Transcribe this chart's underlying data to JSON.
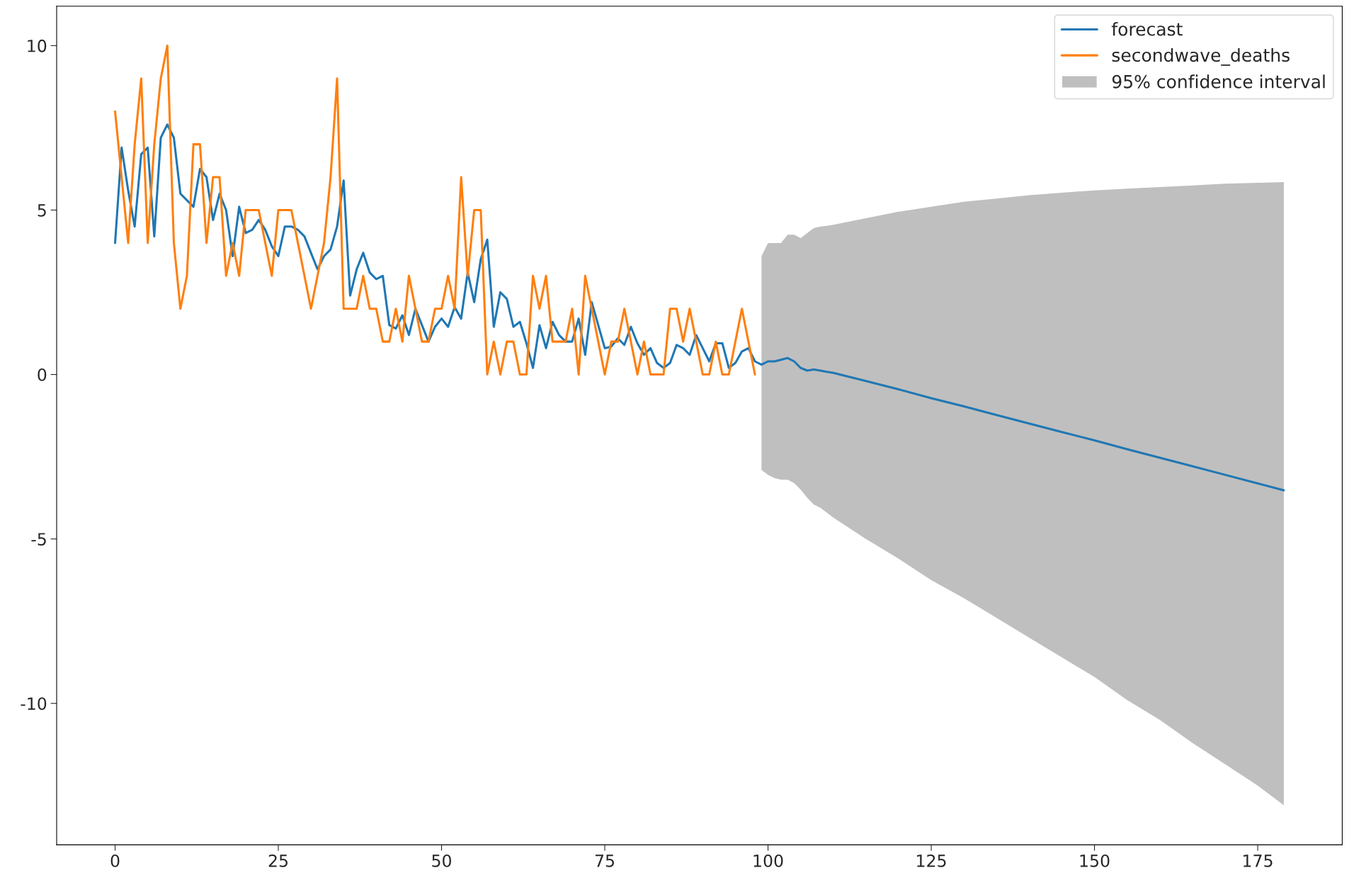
{
  "chart_data": {
    "type": "line",
    "series": [
      {
        "name": "forecast",
        "color": "#1f77b4",
        "x": [
          0,
          1,
          2,
          3,
          4,
          5,
          6,
          7,
          8,
          9,
          10,
          11,
          12,
          13,
          14,
          15,
          16,
          17,
          18,
          19,
          20,
          21,
          22,
          23,
          24,
          25,
          26,
          27,
          28,
          29,
          30,
          31,
          32,
          33,
          34,
          35,
          36,
          37,
          38,
          39,
          40,
          41,
          42,
          43,
          44,
          45,
          46,
          47,
          48,
          49,
          50,
          51,
          52,
          53,
          54,
          55,
          56,
          57,
          58,
          59,
          60,
          61,
          62,
          63,
          64,
          65,
          66,
          67,
          68,
          69,
          70,
          71,
          72,
          73,
          74,
          75,
          76,
          77,
          78,
          79,
          80,
          81,
          82,
          83,
          84,
          85,
          86,
          87,
          88,
          89,
          90,
          91,
          92,
          93,
          94,
          95,
          96,
          97,
          98,
          99,
          100,
          101,
          102,
          103,
          104,
          105,
          106,
          107,
          108,
          109,
          110,
          115,
          120,
          125,
          130,
          135,
          140,
          145,
          150,
          155,
          160,
          165,
          170,
          175,
          179
        ],
        "values": [
          4.0,
          6.9,
          5.6,
          4.5,
          6.7,
          6.9,
          4.2,
          7.2,
          7.6,
          7.2,
          5.5,
          5.3,
          5.1,
          6.25,
          6.0,
          4.7,
          5.5,
          5.0,
          3.6,
          5.1,
          4.3,
          4.4,
          4.7,
          4.4,
          3.9,
          3.6,
          4.5,
          4.5,
          4.4,
          4.2,
          3.7,
          3.2,
          3.6,
          3.8,
          4.5,
          5.9,
          2.4,
          3.2,
          3.7,
          3.1,
          2.9,
          3.0,
          1.5,
          1.4,
          1.8,
          1.2,
          2.0,
          1.5,
          1.0,
          1.45,
          1.7,
          1.45,
          2.05,
          1.7,
          3.1,
          2.2,
          3.5,
          4.1,
          1.45,
          2.5,
          2.3,
          1.45,
          1.6,
          0.95,
          0.2,
          1.5,
          0.8,
          1.6,
          1.2,
          1.0,
          1.0,
          1.7,
          0.6,
          2.2,
          1.5,
          0.8,
          0.85,
          1.1,
          0.9,
          1.45,
          0.95,
          0.6,
          0.8,
          0.35,
          0.2,
          0.35,
          0.9,
          0.8,
          0.6,
          1.2,
          0.8,
          0.4,
          0.95,
          0.95,
          0.2,
          0.35,
          0.7,
          0.8,
          0.4,
          0.3,
          0.4,
          0.4,
          0.45,
          0.5,
          0.4,
          0.2,
          0.12,
          0.15,
          0.12,
          0.08,
          0.05,
          -0.2,
          -0.45,
          -0.72,
          -0.97,
          -1.23,
          -1.49,
          -1.75,
          -2.0,
          -2.27,
          -2.53,
          -2.79,
          -3.05,
          -3.31,
          -3.52
        ],
        "upper": [
          null,
          null,
          null,
          null,
          null,
          null,
          null,
          null,
          null,
          null,
          null,
          null,
          null,
          null,
          null,
          null,
          null,
          null,
          null,
          null,
          null,
          null,
          null,
          null,
          null,
          null,
          null,
          null,
          null,
          null,
          null,
          null,
          null,
          null,
          null,
          null,
          null,
          null,
          null,
          null,
          null,
          null,
          null,
          null,
          null,
          null,
          null,
          null,
          null,
          null,
          null,
          null,
          null,
          null,
          null,
          null,
          null,
          null,
          null,
          null,
          null,
          null,
          null,
          null,
          null,
          null,
          null,
          null,
          null,
          null,
          null,
          null,
          null,
          null,
          null,
          null,
          null,
          null,
          null,
          null,
          null,
          null,
          null,
          null,
          null,
          null,
          null,
          null,
          null,
          null,
          null,
          null,
          null,
          null,
          null,
          null,
          null,
          null,
          null,
          3.6,
          4.0,
          4.0,
          4.0,
          4.25,
          4.25,
          4.15,
          4.3,
          4.45,
          4.5,
          4.52,
          4.55,
          4.75,
          4.95,
          5.1,
          5.25,
          5.35,
          5.45,
          5.53,
          5.6,
          5.65,
          5.7,
          5.75,
          5.8,
          5.83,
          5.85
        ],
        "lower": [
          null,
          null,
          null,
          null,
          null,
          null,
          null,
          null,
          null,
          null,
          null,
          null,
          null,
          null,
          null,
          null,
          null,
          null,
          null,
          null,
          null,
          null,
          null,
          null,
          null,
          null,
          null,
          null,
          null,
          null,
          null,
          null,
          null,
          null,
          null,
          null,
          null,
          null,
          null,
          null,
          null,
          null,
          null,
          null,
          null,
          null,
          null,
          null,
          null,
          null,
          null,
          null,
          null,
          null,
          null,
          null,
          null,
          null,
          null,
          null,
          null,
          null,
          null,
          null,
          null,
          null,
          null,
          null,
          null,
          null,
          null,
          null,
          null,
          null,
          null,
          null,
          null,
          null,
          null,
          null,
          null,
          null,
          null,
          null,
          null,
          null,
          null,
          null,
          null,
          null,
          null,
          null,
          null,
          null,
          null,
          null,
          null,
          null,
          null,
          -2.9,
          -3.05,
          -3.15,
          -3.2,
          -3.2,
          -3.3,
          -3.5,
          -3.75,
          -3.95,
          -4.05,
          -4.2,
          -4.35,
          -5.0,
          -5.6,
          -6.25,
          -6.8,
          -7.4,
          -8.0,
          -8.6,
          -9.2,
          -9.9,
          -10.5,
          -11.2,
          -11.85,
          -12.5,
          -13.1
        ]
      },
      {
        "name": "secondwave_deaths",
        "color": "#ff7f0e",
        "x": [
          0,
          1,
          2,
          3,
          4,
          5,
          6,
          7,
          8,
          9,
          10,
          11,
          12,
          13,
          14,
          15,
          16,
          17,
          18,
          19,
          20,
          21,
          22,
          23,
          24,
          25,
          26,
          27,
          28,
          29,
          30,
          31,
          32,
          33,
          34,
          35,
          36,
          37,
          38,
          39,
          40,
          41,
          42,
          43,
          44,
          45,
          46,
          47,
          48,
          49,
          50,
          51,
          52,
          53,
          54,
          55,
          56,
          57,
          58,
          59,
          60,
          61,
          62,
          63,
          64,
          65,
          66,
          67,
          68,
          69,
          70,
          71,
          72,
          73,
          74,
          75,
          76,
          77,
          78,
          79,
          80,
          81,
          82,
          83,
          84,
          85,
          86,
          87,
          88,
          89,
          90,
          91,
          92,
          93,
          94,
          95,
          96,
          97,
          98
        ],
        "values": [
          8,
          6,
          4,
          7,
          9,
          4,
          7,
          9,
          10,
          4,
          2,
          3,
          7,
          7,
          4,
          6,
          6,
          3,
          4,
          3,
          5,
          5,
          5,
          4,
          3,
          5,
          5,
          5,
          4,
          3,
          2,
          3,
          4,
          6,
          9,
          2,
          2,
          2,
          3,
          2,
          2,
          1,
          1,
          2,
          1,
          3,
          2,
          1,
          1,
          2,
          2,
          3,
          2,
          6,
          3,
          5,
          5,
          0,
          1,
          0,
          1,
          1,
          0,
          0,
          3,
          2,
          3,
          1,
          1,
          1,
          2,
          0,
          3,
          2,
          1,
          0,
          1,
          1,
          2,
          1,
          0,
          1,
          0,
          0,
          0,
          2,
          2,
          1,
          2,
          1,
          0,
          0,
          1,
          0,
          0,
          1,
          2,
          1,
          0
        ]
      },
      {
        "name": "95% confidence interval",
        "type": "area",
        "color": "#bfbfbf"
      }
    ],
    "xlim": [
      -8.95,
      187.95
    ],
    "ylim": [
      -14.3,
      11.2
    ],
    "xticks": [
      0,
      25,
      50,
      75,
      100,
      125,
      150,
      175
    ],
    "yticks": [
      -10,
      -5,
      0,
      5,
      10
    ],
    "legend": "top right",
    "grid": false,
    "line_style": "solid"
  }
}
